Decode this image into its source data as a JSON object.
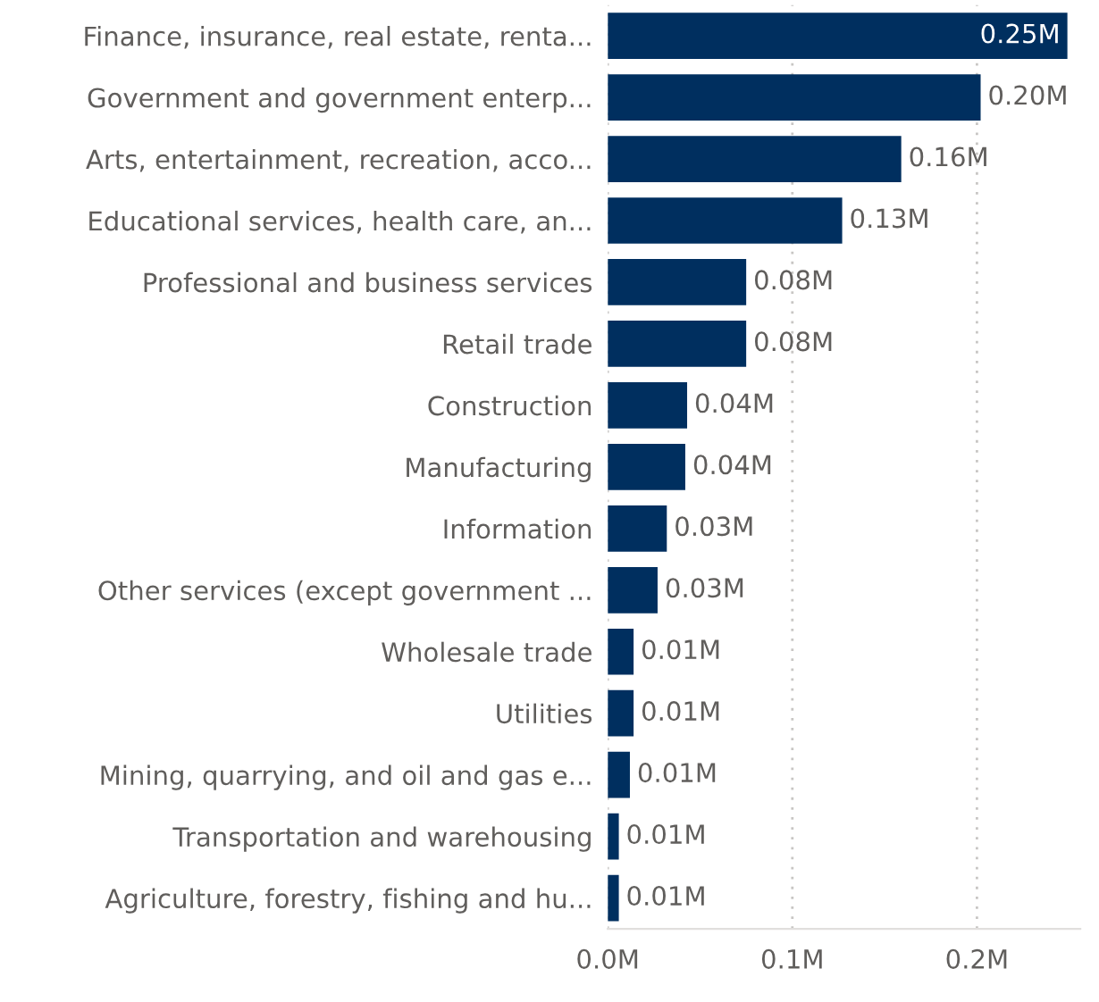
{
  "chart_data": {
    "type": "bar",
    "orientation": "horizontal",
    "categories": [
      "Finance, insurance, real estate, renta...",
      "Government and government enterp...",
      "Arts, entertainment, recreation, acco...",
      "Educational services, health care, an...",
      "Professional and business services",
      "Retail trade",
      "Construction",
      "Manufacturing",
      "Information",
      "Other services (except government ...",
      "Wholesale trade",
      "Utilities",
      "Mining, quarrying, and oil and gas e...",
      "Transportation and warehousing",
      "Agriculture, forestry, fishing and hu..."
    ],
    "values": [
      0.249,
      0.202,
      0.159,
      0.127,
      0.075,
      0.075,
      0.043,
      0.042,
      0.032,
      0.027,
      0.014,
      0.014,
      0.012,
      0.006,
      0.006
    ],
    "value_labels": [
      "0.25M",
      "0.20M",
      "0.16M",
      "0.13M",
      "0.08M",
      "0.08M",
      "0.04M",
      "0.04M",
      "0.03M",
      "0.03M",
      "0.01M",
      "0.01M",
      "0.01M",
      "0.01M",
      "0.01M"
    ],
    "color": "#002f5f",
    "xlim": [
      0,
      0.256
    ],
    "xticks": [
      {
        "value": 0,
        "label": "0.0M"
      },
      {
        "value": 0.1,
        "label": "0.1M"
      },
      {
        "value": 0.2,
        "label": "0.2M"
      }
    ],
    "grid": "x"
  }
}
